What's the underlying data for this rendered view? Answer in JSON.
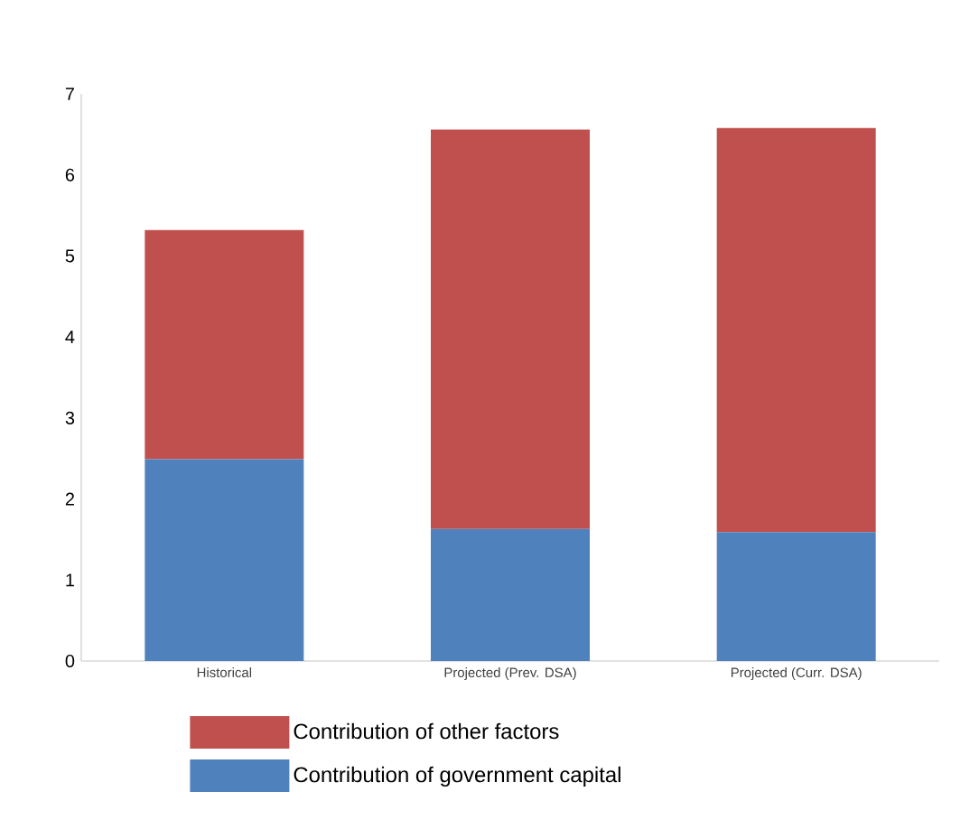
{
  "chart_data": {
    "type": "bar",
    "stacked": true,
    "categories": [
      "Historical",
      "Projected (Prev. DSA)",
      "Projected (Curr. DSA)"
    ],
    "series": [
      {
        "name": "Contribution of government capital",
        "color": "#4f81bd",
        "values": [
          2.49,
          1.63,
          1.59
        ]
      },
      {
        "name": "Contribution of other factors",
        "color": "#c0504d",
        "values": [
          2.83,
          4.93,
          4.99
        ]
      }
    ],
    "ylim": [
      0,
      7
    ],
    "yticks": [
      0,
      1,
      2,
      3,
      4,
      5,
      6,
      7
    ],
    "grid": false,
    "legend": "bottom"
  }
}
